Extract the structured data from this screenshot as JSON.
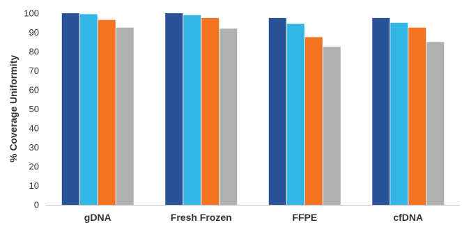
{
  "chart_data": {
    "type": "bar",
    "title": "",
    "xlabel": "",
    "ylabel": "% Coverage Uniformity",
    "categories": [
      "gDNA",
      "Fresh Frozen",
      "FFPE",
      "cfDNA"
    ],
    "series": [
      {
        "color": "#2a5298",
        "values": [
          100,
          100,
          97.5,
          97.5
        ]
      },
      {
        "color": "#33b5e5",
        "values": [
          99.5,
          99,
          94.5,
          95
        ]
      },
      {
        "color": "#f47321",
        "values": [
          96.5,
          97.5,
          87.5,
          92.5
        ]
      },
      {
        "color": "#b0b0b0",
        "values": [
          92.5,
          92,
          82.5,
          85
        ]
      }
    ],
    "ylim": [
      0,
      100
    ],
    "yticks": [
      0,
      10,
      20,
      30,
      40,
      50,
      60,
      70,
      80,
      90,
      100
    ],
    "grid": false,
    "legend": "none"
  }
}
